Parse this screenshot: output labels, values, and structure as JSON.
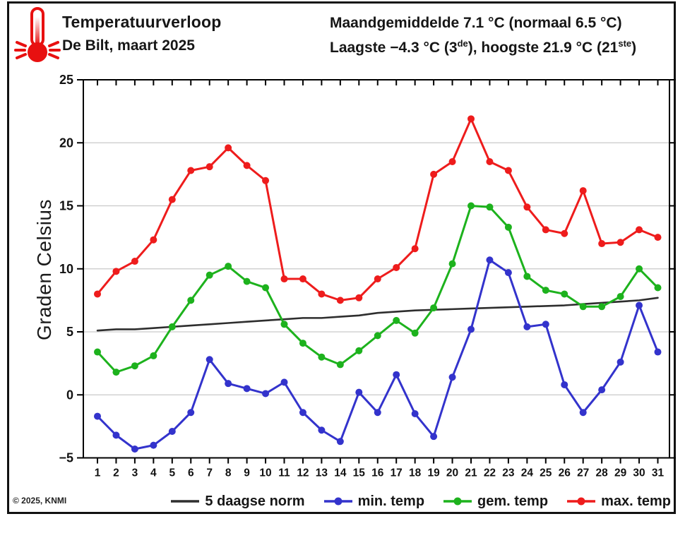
{
  "header": {
    "title": "Temperatuurverloop",
    "subtitle": "De Bilt, maart 2025",
    "stats": {
      "line1": "Maandgemiddelde 7.1 °C (normaal 6.5 °C)",
      "line2_prefix": "Laagste −4.3 °C (3",
      "line2_sup1": "de",
      "line2_mid": "), hoogste 21.9 °C (21",
      "line2_sup2": "ste",
      "line2_suffix": ")"
    },
    "icon": "thermometer-icon"
  },
  "footer": {
    "copyright": "© 2025, KNMI"
  },
  "colors": {
    "max_temp": "#ee1c1c",
    "gem_temp": "#1db21d",
    "min_temp": "#3333cc",
    "norm": "#2e2e2e",
    "grid": "#c9c9c9",
    "axis": "#000000"
  },
  "chart_data": {
    "type": "line",
    "title": "Temperatuurverloop",
    "subtitle": "De Bilt, maart 2025",
    "xlabel": "",
    "ylabel": "Graden Celsius",
    "ylim": [
      -5,
      25
    ],
    "yticks": [
      25,
      20,
      15,
      10,
      5,
      0,
      -5
    ],
    "grid": "horizontal",
    "legend_position": "bottom",
    "x": [
      1,
      2,
      3,
      4,
      5,
      6,
      7,
      8,
      9,
      10,
      11,
      12,
      13,
      14,
      15,
      16,
      17,
      18,
      19,
      20,
      21,
      22,
      23,
      24,
      25,
      26,
      27,
      28,
      29,
      30,
      31
    ],
    "series": [
      {
        "name": "5 daagse norm",
        "color": "#2e2e2e",
        "marker": false,
        "values": [
          5.1,
          5.2,
          5.2,
          5.3,
          5.4,
          5.5,
          5.6,
          5.7,
          5.8,
          5.9,
          6.0,
          6.1,
          6.1,
          6.2,
          6.3,
          6.5,
          6.6,
          6.7,
          6.75,
          6.8,
          6.85,
          6.9,
          6.95,
          7.0,
          7.05,
          7.1,
          7.2,
          7.3,
          7.4,
          7.5,
          7.7
        ]
      },
      {
        "name": "min. temp",
        "color": "#3333cc",
        "marker": true,
        "values": [
          -1.7,
          -3.2,
          -4.3,
          -4.0,
          -2.9,
          -1.4,
          2.8,
          0.9,
          0.5,
          0.1,
          1.0,
          -1.4,
          -2.8,
          -3.7,
          0.2,
          -1.4,
          1.6,
          -1.5,
          -3.3,
          1.4,
          5.2,
          10.7,
          9.7,
          5.4,
          5.6,
          0.8,
          -1.4,
          0.4,
          2.6,
          7.1,
          3.4
        ]
      },
      {
        "name": "gem. temp",
        "color": "#1db21d",
        "marker": true,
        "values": [
          3.4,
          1.8,
          2.3,
          3.1,
          5.4,
          7.5,
          9.5,
          10.2,
          9.0,
          8.5,
          5.6,
          4.1,
          3.0,
          2.4,
          3.5,
          4.7,
          5.9,
          4.9,
          6.9,
          10.4,
          15.0,
          14.9,
          13.3,
          9.4,
          8.3,
          8.0,
          7.0,
          7.0,
          7.8,
          10.0,
          8.5
        ]
      },
      {
        "name": "max. temp",
        "color": "#ee1c1c",
        "marker": true,
        "values": [
          8.0,
          9.8,
          10.6,
          12.3,
          15.5,
          17.8,
          18.1,
          19.6,
          18.2,
          17.0,
          9.2,
          9.2,
          8.0,
          7.5,
          7.7,
          9.2,
          10.1,
          11.6,
          17.5,
          18.5,
          21.9,
          18.5,
          17.8,
          14.9,
          13.1,
          12.8,
          16.2,
          12.0,
          12.1,
          13.1,
          12.5
        ]
      }
    ]
  }
}
